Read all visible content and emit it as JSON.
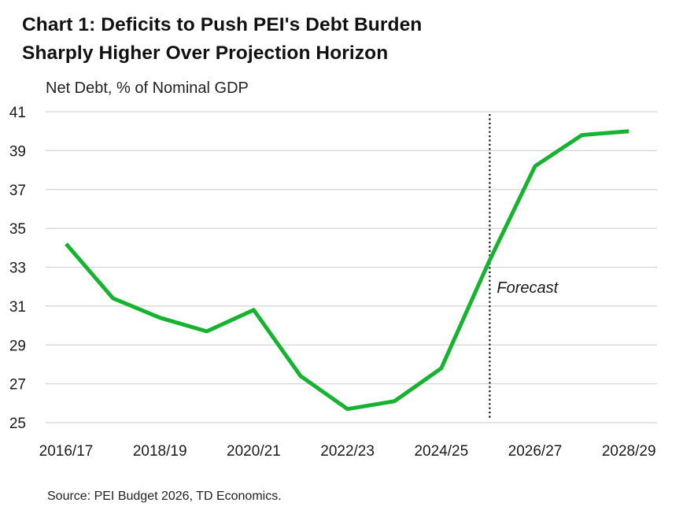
{
  "title_lines": [
    "Chart 1: Deficits to Push PEI's Debt Burden",
    "Sharply Higher Over Projection Horizon"
  ],
  "y_unit_label": "Net Debt, % of Nominal GDP",
  "source": "Source: PEI Budget 2026, TD Economics.",
  "chart_data": {
    "type": "line",
    "title": "Chart 1: Deficits to Push PEI's Debt Burden Sharply Higher Over Projection Horizon",
    "ylabel": "Net Debt, % of Nominal GDP",
    "xlabel": "",
    "categories": [
      "2016/17",
      "2017/18",
      "2018/19",
      "2019/20",
      "2020/21",
      "2021/22",
      "2022/23",
      "2023/24",
      "2024/25",
      "2025/26",
      "2026/27",
      "2027/28",
      "2028/29"
    ],
    "x_tick_labels": [
      "2016/17",
      "2018/19",
      "2020/21",
      "2022/23",
      "2024/25",
      "2026/27",
      "2028/29"
    ],
    "series": [
      {
        "values": [
          34.2,
          31.4,
          30.4,
          29.7,
          30.8,
          27.4,
          25.7,
          26.1,
          27.8,
          33.2,
          38.2,
          39.8,
          40.0
        ]
      }
    ],
    "ylim": [
      25,
      41
    ],
    "yticks": [
      25,
      27,
      29,
      31,
      33,
      35,
      37,
      39,
      41
    ],
    "grid": "horizontal",
    "annotations": [
      {
        "text": "Forecast",
        "at_category": "2025/26"
      }
    ],
    "colors": {
      "line": "#16b32f",
      "grid": "#d4d4d4",
      "forecast_line": "#111111"
    }
  }
}
